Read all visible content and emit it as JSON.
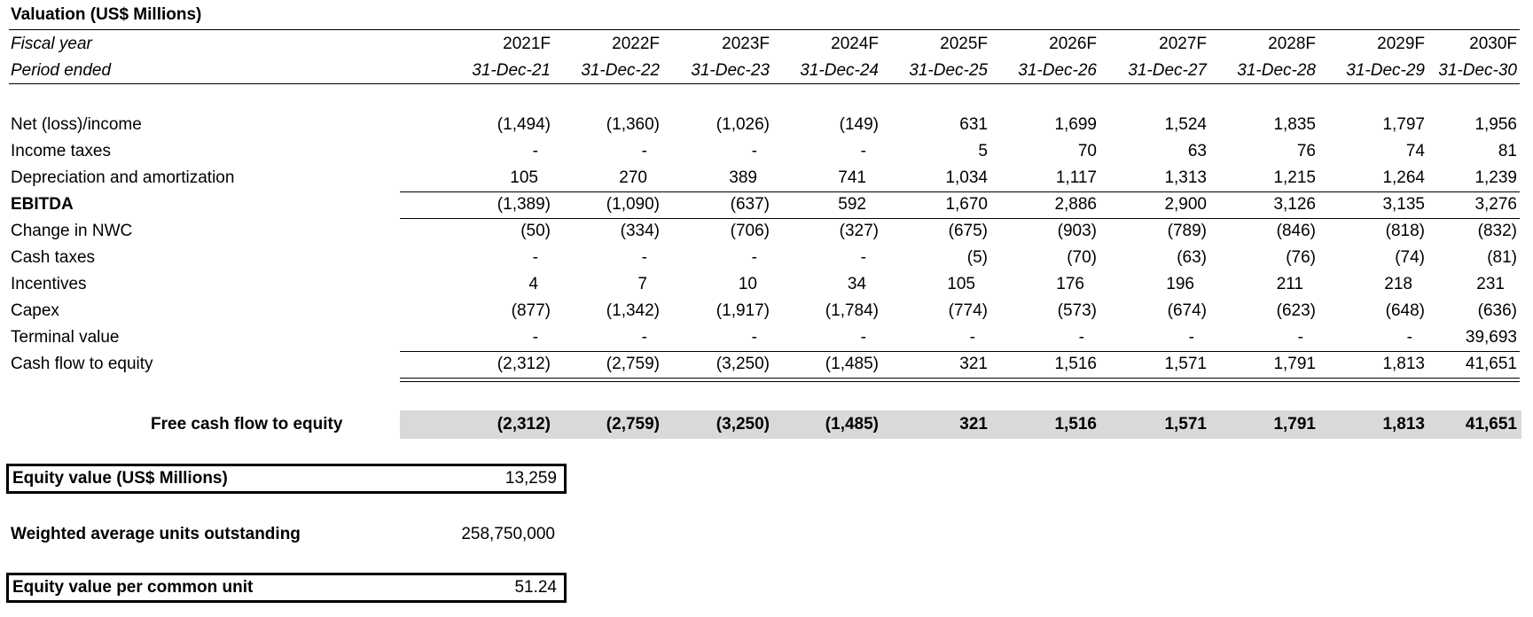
{
  "title": "Valuation (US$ Millions)",
  "header": {
    "fiscal_year_label": "Fiscal year",
    "period_label": "Period ended",
    "years": [
      "2021F",
      "2022F",
      "2023F",
      "2024F",
      "2025F",
      "2026F",
      "2027F",
      "2028F",
      "2029F",
      "2030F"
    ],
    "periods": [
      "31-Dec-21",
      "31-Dec-22",
      "31-Dec-23",
      "31-Dec-24",
      "31-Dec-25",
      "31-Dec-26",
      "31-Dec-27",
      "31-Dec-28",
      "31-Dec-29",
      "31-Dec-30"
    ]
  },
  "rows": {
    "net_income": {
      "label": "Net (loss)/income",
      "values": [
        "(1,494)",
        "(1,360)",
        "(1,026)",
        "(149)",
        "631",
        "1,699",
        "1,524",
        "1,835",
        "1,797",
        "1,956"
      ]
    },
    "income_taxes": {
      "label": "Income taxes",
      "values": [
        "-",
        "-",
        "-",
        "-",
        "5",
        "70",
        "63",
        "76",
        "74",
        "81"
      ]
    },
    "dep_amort": {
      "label": "Depreciation and amortization",
      "values": [
        "105",
        "270",
        "389",
        "741",
        "1,034",
        "1,117",
        "1,313",
        "1,215",
        "1,264",
        "1,239"
      ]
    },
    "ebitda": {
      "label": "EBITDA",
      "values": [
        "(1,389)",
        "(1,090)",
        "(637)",
        "592",
        "1,670",
        "2,886",
        "2,900",
        "3,126",
        "3,135",
        "3,276"
      ]
    },
    "change_nwc": {
      "label": "Change in NWC",
      "values": [
        "(50)",
        "(334)",
        "(706)",
        "(327)",
        "(675)",
        "(903)",
        "(789)",
        "(846)",
        "(818)",
        "(832)"
      ]
    },
    "cash_taxes": {
      "label": "Cash taxes",
      "values": [
        "-",
        "-",
        "-",
        "-",
        "(5)",
        "(70)",
        "(63)",
        "(76)",
        "(74)",
        "(81)"
      ]
    },
    "incentives": {
      "label": "Incentives",
      "values": [
        "4",
        "7",
        "10",
        "34",
        "105",
        "176",
        "196",
        "211",
        "218",
        "231"
      ]
    },
    "capex": {
      "label": "Capex",
      "values": [
        "(877)",
        "(1,342)",
        "(1,917)",
        "(1,784)",
        "(774)",
        "(573)",
        "(674)",
        "(623)",
        "(648)",
        "(636)"
      ]
    },
    "terminal_value": {
      "label": "Terminal value",
      "values": [
        "-",
        "-",
        "-",
        "-",
        "-",
        "-",
        "-",
        "-",
        "-",
        "39,693"
      ]
    },
    "cf_to_equity": {
      "label": "Cash flow to equity",
      "values": [
        "(2,312)",
        "(2,759)",
        "(3,250)",
        "(1,485)",
        "321",
        "1,516",
        "1,571",
        "1,791",
        "1,813",
        "41,651"
      ]
    }
  },
  "fcf": {
    "label": "Free cash flow to equity",
    "values": [
      "(2,312)",
      "(2,759)",
      "(3,250)",
      "(1,485)",
      "321",
      "1,516",
      "1,571",
      "1,791",
      "1,813",
      "41,651"
    ]
  },
  "summary": {
    "equity_value_label": "Equity value (US$ Millions)",
    "equity_value": "13,259",
    "units_label": "Weighted average units outstanding",
    "units_value": "258,750,000",
    "per_unit_label": "Equity value per common unit",
    "per_unit_value": "51.24"
  }
}
